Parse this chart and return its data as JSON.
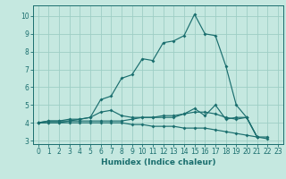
{
  "title": "",
  "xlabel": "Humidex (Indice chaleur)",
  "xlim": [
    -0.5,
    23.5
  ],
  "ylim": [
    2.8,
    10.6
  ],
  "bg_color": "#c5e8e0",
  "grid_color": "#9ecec5",
  "line_color": "#1a6e6e",
  "series": [
    {
      "x": [
        0,
        1,
        2,
        3,
        4,
        5,
        6,
        7,
        8,
        9,
        10,
        11,
        12,
        13,
        14,
        15,
        16,
        17,
        18,
        19,
        20,
        21,
        22
      ],
      "y": [
        4.0,
        4.1,
        4.1,
        4.1,
        4.2,
        4.3,
        5.3,
        5.5,
        6.5,
        6.7,
        7.6,
        7.5,
        8.5,
        8.6,
        8.9,
        10.1,
        9.0,
        8.9,
        7.2,
        5.0,
        4.3,
        3.2,
        3.2
      ]
    },
    {
      "x": [
        0,
        1,
        2,
        3,
        4,
        5,
        6,
        7,
        8,
        9,
        10,
        11,
        12,
        13,
        14,
        15,
        16,
        17,
        18,
        19,
        20,
        21
      ],
      "y": [
        4.0,
        4.1,
        4.1,
        4.2,
        4.2,
        4.3,
        4.6,
        4.7,
        4.4,
        4.3,
        4.3,
        4.3,
        4.3,
        4.3,
        4.5,
        4.8,
        4.4,
        5.0,
        4.2,
        4.3,
        4.3,
        3.2
      ]
    },
    {
      "x": [
        0,
        1,
        2,
        3,
        4,
        5,
        6,
        7,
        8,
        9,
        10,
        11,
        12,
        13,
        14,
        15,
        16,
        17,
        18,
        19,
        20,
        21,
        22
      ],
      "y": [
        4.0,
        4.0,
        4.0,
        4.0,
        4.0,
        4.0,
        4.0,
        4.0,
        4.0,
        3.9,
        3.9,
        3.8,
        3.8,
        3.8,
        3.7,
        3.7,
        3.7,
        3.6,
        3.5,
        3.4,
        3.3,
        3.2,
        3.1
      ]
    },
    {
      "x": [
        0,
        1,
        2,
        3,
        4,
        5,
        6,
        7,
        8,
        9,
        10,
        11,
        12,
        13,
        14,
        15,
        16,
        17,
        18,
        19,
        20,
        21
      ],
      "y": [
        4.0,
        4.0,
        4.0,
        4.1,
        4.1,
        4.1,
        4.1,
        4.1,
        4.1,
        4.2,
        4.3,
        4.3,
        4.4,
        4.4,
        4.5,
        4.6,
        4.6,
        4.5,
        4.3,
        4.2,
        4.3,
        3.2
      ]
    }
  ]
}
